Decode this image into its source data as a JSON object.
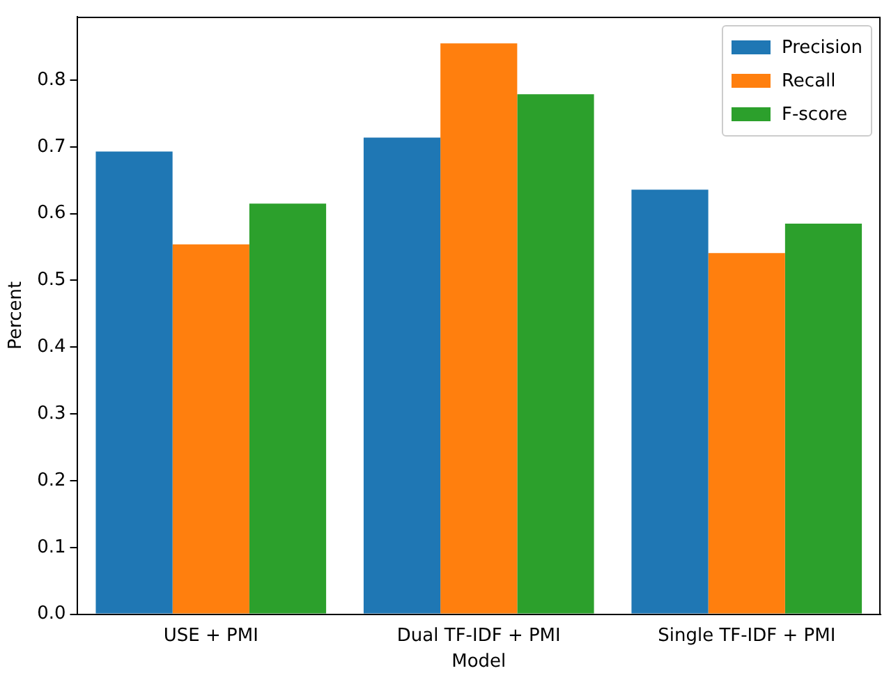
{
  "chart_data": {
    "type": "bar",
    "xlabel": "Model",
    "ylabel": "Percent",
    "categories": [
      "USE + PMI",
      "Dual TF-IDF + PMI",
      "Single TF-IDF + PMI"
    ],
    "series": [
      {
        "name": "Precision",
        "color": "#1f77b4",
        "values": [
          0.693,
          0.714,
          0.636
        ]
      },
      {
        "name": "Recall",
        "color": "#ff7f0e",
        "values": [
          0.554,
          0.855,
          0.541
        ]
      },
      {
        "name": "F-score",
        "color": "#2ca02c",
        "values": [
          0.615,
          0.779,
          0.585
        ]
      }
    ],
    "ylim": [
      0,
      0.895
    ],
    "yticks": [
      {
        "value": 0,
        "label": "0.0"
      },
      0.1,
      0.2,
      0.3,
      0.4,
      0.5,
      0.6,
      0.7,
      0.8
    ],
    "grid": false,
    "legend": "top right"
  }
}
